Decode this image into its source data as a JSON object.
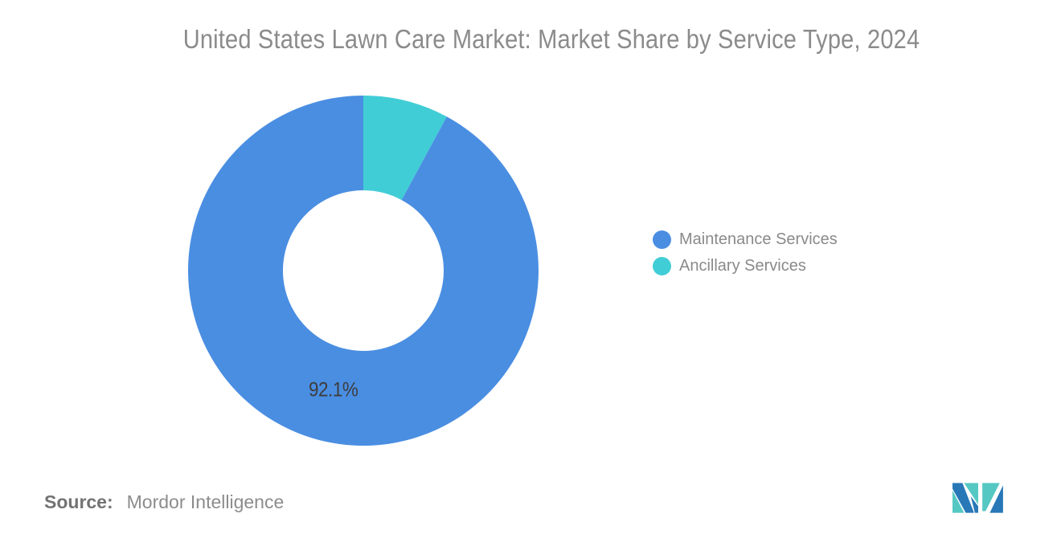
{
  "title": "United States Lawn Care Market: Market Share by Service Type, 2024",
  "chart_data": {
    "type": "pie",
    "subtype": "donut",
    "title": "United States Lawn Care Market: Market Share by Service Type, 2024",
    "categories": [
      "Maintenance Services",
      "Ancillary Services"
    ],
    "values": [
      92.1,
      7.9
    ],
    "unit": "%",
    "colors": [
      "#4A8EE2",
      "#41CDD6"
    ],
    "render_order_from_top_clockwise": [
      1,
      0
    ],
    "start_angle_deg": 0,
    "direction": "clockwise",
    "inner_radius_ratio": 0.46,
    "data_labels": [
      {
        "slice": "Maintenance Services",
        "text": "92.1%"
      }
    ],
    "legend_position": "right",
    "grid": false,
    "background": "#ffffff"
  },
  "annotation": {
    "text": "92.1%",
    "color": "#3d3d3d"
  },
  "legend": {
    "items": [
      {
        "label": "Maintenance Services",
        "color": "#4A8EE2"
      },
      {
        "label": "Ancillary Services",
        "color": "#41CDD6"
      }
    ]
  },
  "source": {
    "label": "Source:",
    "value": "Mordor Intelligence"
  },
  "logo": {
    "name": "mordor-intelligence-logo-mark",
    "teal": "#56C8C3",
    "blue": "#2878B8"
  }
}
